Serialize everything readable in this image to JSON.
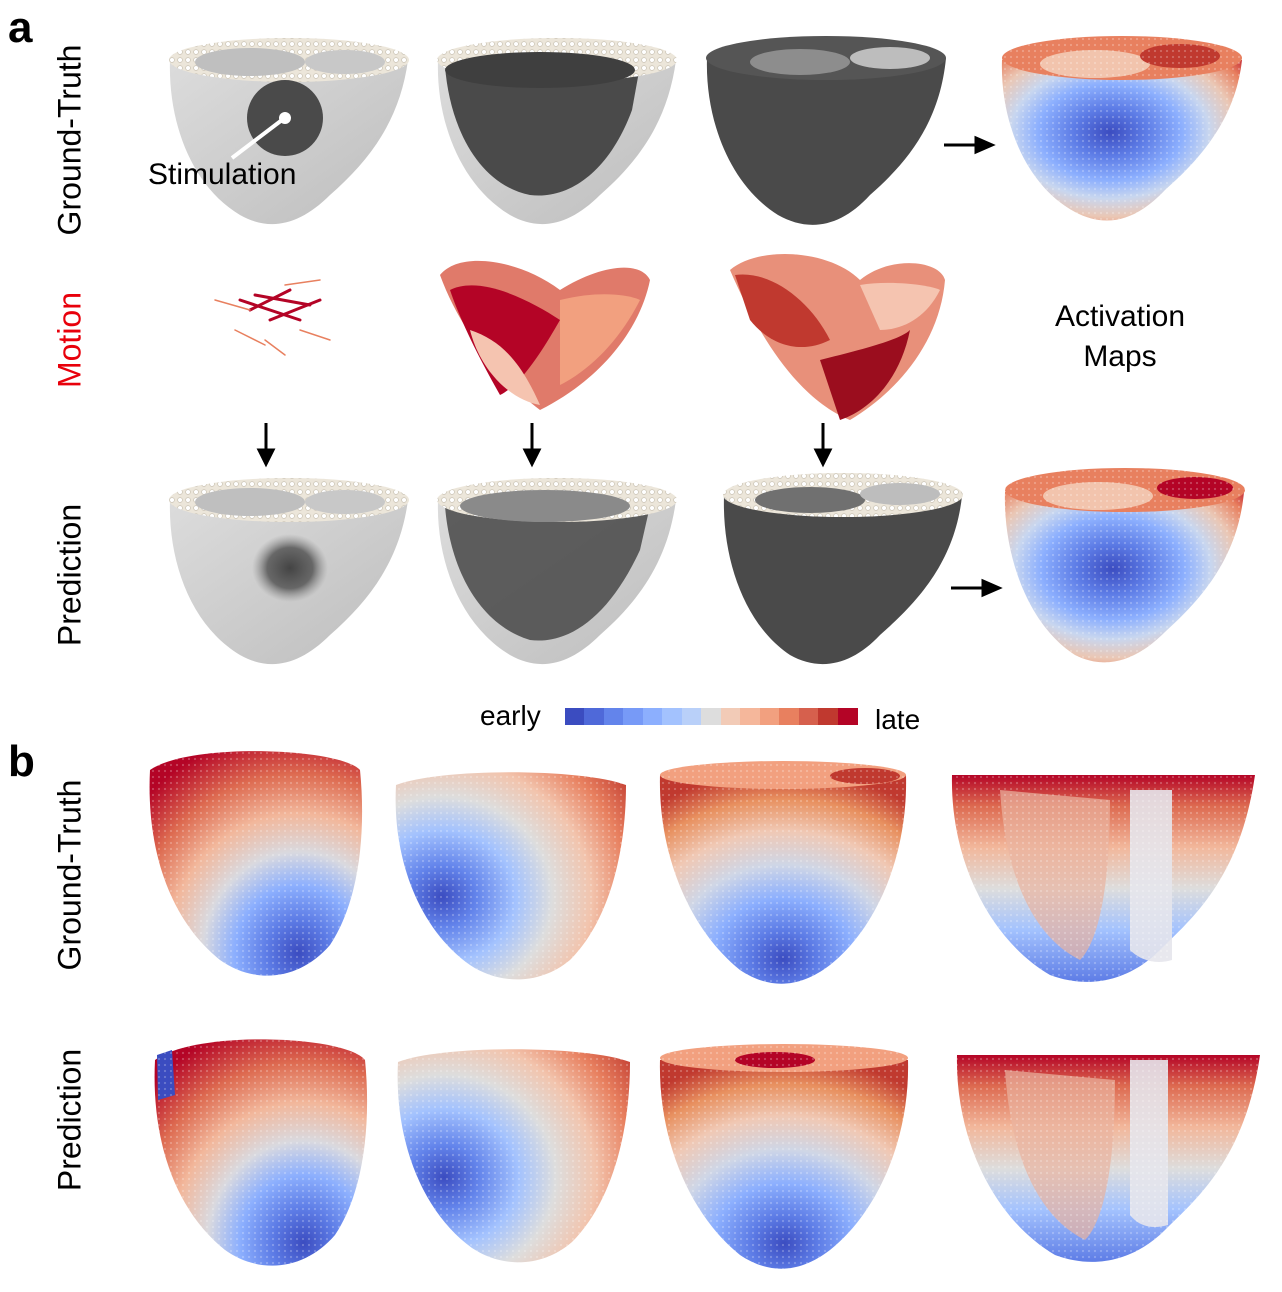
{
  "panels": {
    "a": "a",
    "b": "b"
  },
  "row_labels": {
    "a_ground_truth": "Ground-Truth",
    "a_motion": "Motion",
    "a_prediction": "Prediction",
    "b_ground_truth": "Ground-Truth",
    "b_prediction": "Prediction"
  },
  "annotations": {
    "stimulation": "Stimulation",
    "activation_maps_line1": "Activation",
    "activation_maps_line2": "Maps"
  },
  "colorbar": {
    "left_label": "early",
    "right_label": "late",
    "colors": [
      "#3b4cc0",
      "#4f69d9",
      "#6384eb",
      "#779af7",
      "#8caffe",
      "#a3c2fe",
      "#b9d0f9",
      "#dddddd",
      "#f2cbb7",
      "#f5b79b",
      "#f2a07f",
      "#e8805f",
      "#d6604d",
      "#c0392f",
      "#b40426"
    ]
  },
  "colors": {
    "motion_label": "#e8000b",
    "mesh_light": "#d4d4d4",
    "mesh_dark": "#4a4a4a",
    "rim": "#e8e2d6"
  },
  "icons": [
    "down-arrow-icon",
    "right-arrow-icon",
    "heart-mesh-render",
    "motion-vector-field"
  ]
}
